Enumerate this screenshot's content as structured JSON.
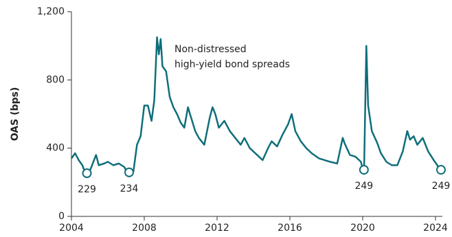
{
  "chart_data": {
    "type": "line",
    "y_label": "OAS (bps)",
    "annotation": [
      "Non-distressed",
      "high-yield bond spreads"
    ],
    "xlim": [
      2004,
      2024
    ],
    "xticks": [
      2004,
      2008,
      2012,
      2016,
      2020,
      2024
    ],
    "ylim": [
      0,
      1200
    ],
    "yticks": [
      0,
      400,
      800,
      {
        "value": 1200,
        "label": "1,200"
      }
    ],
    "series": [
      {
        "color": "#0e6e7a",
        "x": [
          2004.0,
          2004.2,
          2004.4,
          2004.6,
          2004.85,
          2005.1,
          2005.35,
          2005.5,
          2005.8,
          2006.0,
          2006.3,
          2006.6,
          2006.9,
          2007.17,
          2007.4,
          2007.6,
          2007.8,
          2008.0,
          2008.2,
          2008.4,
          2008.55,
          2008.7,
          2008.8,
          2008.9,
          2009.0,
          2009.2,
          2009.4,
          2009.6,
          2009.8,
          2010.0,
          2010.2,
          2010.4,
          2010.6,
          2010.8,
          2011.0,
          2011.3,
          2011.6,
          2011.75,
          2011.9,
          2012.1,
          2012.4,
          2012.7,
          2013.0,
          2013.3,
          2013.5,
          2013.8,
          2014.2,
          2014.5,
          2014.8,
          2015.0,
          2015.3,
          2015.6,
          2015.9,
          2016.1,
          2016.3,
          2016.6,
          2016.9,
          2017.2,
          2017.6,
          2017.9,
          2018.2,
          2018.6,
          2018.9,
          2019.0,
          2019.3,
          2019.6,
          2019.9,
          2020.07,
          2020.2,
          2020.3,
          2020.5,
          2020.8,
          2021.0,
          2021.3,
          2021.6,
          2021.9,
          2022.2,
          2022.45,
          2022.6,
          2022.8,
          2023.0,
          2023.3,
          2023.6,
          2023.9,
          2024.1,
          2024.3
        ],
        "values": [
          340,
          370,
          330,
          300,
          229,
          290,
          360,
          300,
          310,
          320,
          300,
          310,
          290,
          234,
          260,
          420,
          470,
          650,
          650,
          560,
          680,
          1050,
          950,
          1040,
          880,
          850,
          700,
          640,
          600,
          550,
          520,
          640,
          570,
          500,
          460,
          420,
          580,
          640,
          600,
          520,
          560,
          500,
          460,
          420,
          460,
          400,
          360,
          330,
          400,
          440,
          410,
          480,
          540,
          600,
          500,
          440,
          400,
          370,
          340,
          330,
          320,
          310,
          460,
          430,
          360,
          350,
          320,
          249,
          1000,
          650,
          500,
          430,
          370,
          320,
          300,
          300,
          380,
          500,
          450,
          470,
          420,
          460,
          380,
          330,
          300,
          249
        ]
      }
    ],
    "markers": [
      {
        "x": 2004.85,
        "value": 229
      },
      {
        "x": 2007.17,
        "value": 234
      },
      {
        "x": 2020.07,
        "value": 249
      },
      {
        "x": 2024.3,
        "value": 249
      }
    ]
  }
}
